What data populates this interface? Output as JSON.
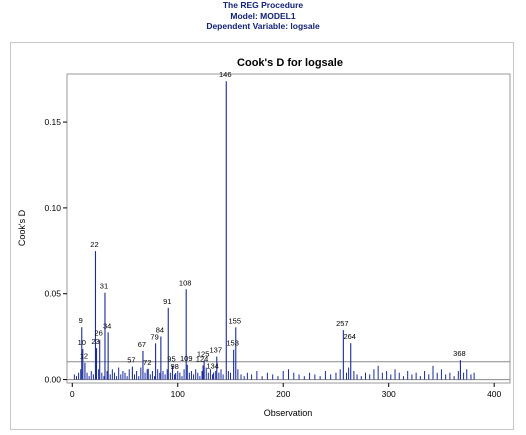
{
  "header": {
    "line1": "The REG Procedure",
    "line2": "Model: MODEL1",
    "line3": "Dependent Variable: logsale",
    "color": "#112277"
  },
  "chart_data": {
    "type": "bar",
    "title": "Cook's D for logsale",
    "xlabel": "Observation",
    "ylabel": "Cook's D",
    "xlim": [
      -5,
      415
    ],
    "ylim": [
      -0.002,
      0.178
    ],
    "xticks": [
      0,
      100,
      200,
      300,
      400
    ],
    "yticks": [
      0.0,
      0.05,
      0.1,
      0.15
    ],
    "ytick_labels": [
      "0.00",
      "0.05",
      "0.10",
      "0.15"
    ],
    "threshold": 0.0104,
    "bar_color": "#1a2a9a",
    "threshold_color": "#8a8a8a",
    "labeled_points": [
      {
        "obs": 9,
        "value": 0.0305
      },
      {
        "obs": 10,
        "value": 0.0178
      },
      {
        "obs": 12,
        "value": 0.0098
      },
      {
        "obs": 22,
        "value": 0.0748
      },
      {
        "obs": 23,
        "value": 0.0183
      },
      {
        "obs": 26,
        "value": 0.0232
      },
      {
        "obs": 31,
        "value": 0.0506
      },
      {
        "obs": 34,
        "value": 0.0275
      },
      {
        "obs": 57,
        "value": 0.0076
      },
      {
        "obs": 67,
        "value": 0.0167
      },
      {
        "obs": 72,
        "value": 0.0063
      },
      {
        "obs": 79,
        "value": 0.0211
      },
      {
        "obs": 84,
        "value": 0.0251
      },
      {
        "obs": 91,
        "value": 0.0418
      },
      {
        "obs": 95,
        "value": 0.0081
      },
      {
        "obs": 98,
        "value": 0.0038
      },
      {
        "obs": 108,
        "value": 0.0526
      },
      {
        "obs": 109,
        "value": 0.0086
      },
      {
        "obs": 124,
        "value": 0.0082
      },
      {
        "obs": 125,
        "value": 0.0111
      },
      {
        "obs": 134,
        "value": 0.0041
      },
      {
        "obs": 137,
        "value": 0.0134
      },
      {
        "obs": 146,
        "value": 0.1738
      },
      {
        "obs": 153,
        "value": 0.0174
      },
      {
        "obs": 155,
        "value": 0.0304
      },
      {
        "obs": 257,
        "value": 0.0288
      },
      {
        "obs": 264,
        "value": 0.0212
      },
      {
        "obs": 368,
        "value": 0.0113
      }
    ],
    "other_points": [
      {
        "obs": 2,
        "value": 0.003
      },
      {
        "obs": 4,
        "value": 0.002
      },
      {
        "obs": 6,
        "value": 0.004
      },
      {
        "obs": 8,
        "value": 0.006
      },
      {
        "obs": 14,
        "value": 0.004
      },
      {
        "obs": 16,
        "value": 0.002
      },
      {
        "obs": 18,
        "value": 0.005
      },
      {
        "obs": 20,
        "value": 0.003
      },
      {
        "obs": 25,
        "value": 0.006
      },
      {
        "obs": 28,
        "value": 0.004
      },
      {
        "obs": 30,
        "value": 0.002
      },
      {
        "obs": 33,
        "value": 0.005
      },
      {
        "obs": 36,
        "value": 0.003
      },
      {
        "obs": 38,
        "value": 0.006
      },
      {
        "obs": 40,
        "value": 0.004
      },
      {
        "obs": 42,
        "value": 0.002
      },
      {
        "obs": 44,
        "value": 0.007
      },
      {
        "obs": 46,
        "value": 0.003
      },
      {
        "obs": 48,
        "value": 0.005
      },
      {
        "obs": 50,
        "value": 0.004
      },
      {
        "obs": 52,
        "value": 0.002
      },
      {
        "obs": 54,
        "value": 0.006
      },
      {
        "obs": 59,
        "value": 0.003
      },
      {
        "obs": 61,
        "value": 0.005
      },
      {
        "obs": 63,
        "value": 0.002
      },
      {
        "obs": 65,
        "value": 0.007
      },
      {
        "obs": 69,
        "value": 0.004
      },
      {
        "obs": 71,
        "value": 0.006
      },
      {
        "obs": 74,
        "value": 0.003
      },
      {
        "obs": 76,
        "value": 0.005
      },
      {
        "obs": 78,
        "value": 0.002
      },
      {
        "obs": 81,
        "value": 0.006
      },
      {
        "obs": 83,
        "value": 0.004
      },
      {
        "obs": 86,
        "value": 0.005
      },
      {
        "obs": 88,
        "value": 0.003
      },
      {
        "obs": 90,
        "value": 0.006
      },
      {
        "obs": 93,
        "value": 0.004
      },
      {
        "obs": 97,
        "value": 0.003
      },
      {
        "obs": 100,
        "value": 0.005
      },
      {
        "obs": 102,
        "value": 0.004
      },
      {
        "obs": 104,
        "value": 0.002
      },
      {
        "obs": 106,
        "value": 0.006
      },
      {
        "obs": 111,
        "value": 0.004
      },
      {
        "obs": 113,
        "value": 0.005
      },
      {
        "obs": 115,
        "value": 0.003
      },
      {
        "obs": 117,
        "value": 0.006
      },
      {
        "obs": 119,
        "value": 0.004
      },
      {
        "obs": 121,
        "value": 0.002
      },
      {
        "obs": 123,
        "value": 0.005
      },
      {
        "obs": 127,
        "value": 0.007
      },
      {
        "obs": 129,
        "value": 0.004
      },
      {
        "obs": 131,
        "value": 0.006
      },
      {
        "obs": 133,
        "value": 0.003
      },
      {
        "obs": 136,
        "value": 0.005
      },
      {
        "obs": 139,
        "value": 0.004
      },
      {
        "obs": 141,
        "value": 0.006
      },
      {
        "obs": 143,
        "value": 0.003
      },
      {
        "obs": 148,
        "value": 0.005
      },
      {
        "obs": 150,
        "value": 0.004
      },
      {
        "obs": 157,
        "value": 0.006
      },
      {
        "obs": 160,
        "value": 0.003
      },
      {
        "obs": 163,
        "value": 0.002
      },
      {
        "obs": 166,
        "value": 0.004
      },
      {
        "obs": 170,
        "value": 0.003
      },
      {
        "obs": 175,
        "value": 0.005
      },
      {
        "obs": 180,
        "value": 0.002
      },
      {
        "obs": 185,
        "value": 0.004
      },
      {
        "obs": 190,
        "value": 0.003
      },
      {
        "obs": 195,
        "value": 0.002
      },
      {
        "obs": 200,
        "value": 0.005
      },
      {
        "obs": 205,
        "value": 0.006
      },
      {
        "obs": 210,
        "value": 0.004
      },
      {
        "obs": 215,
        "value": 0.003
      },
      {
        "obs": 220,
        "value": 0.002
      },
      {
        "obs": 225,
        "value": 0.004
      },
      {
        "obs": 230,
        "value": 0.003
      },
      {
        "obs": 235,
        "value": 0.002
      },
      {
        "obs": 240,
        "value": 0.005
      },
      {
        "obs": 245,
        "value": 0.003
      },
      {
        "obs": 250,
        "value": 0.004
      },
      {
        "obs": 254,
        "value": 0.006
      },
      {
        "obs": 260,
        "value": 0.004
      },
      {
        "obs": 262,
        "value": 0.007
      },
      {
        "obs": 267,
        "value": 0.005
      },
      {
        "obs": 270,
        "value": 0.003
      },
      {
        "obs": 274,
        "value": 0.002
      },
      {
        "obs": 278,
        "value": 0.004
      },
      {
        "obs": 282,
        "value": 0.003
      },
      {
        "obs": 286,
        "value": 0.006
      },
      {
        "obs": 290,
        "value": 0.008
      },
      {
        "obs": 294,
        "value": 0.004
      },
      {
        "obs": 298,
        "value": 0.005
      },
      {
        "obs": 302,
        "value": 0.003
      },
      {
        "obs": 306,
        "value": 0.006
      },
      {
        "obs": 310,
        "value": 0.004
      },
      {
        "obs": 314,
        "value": 0.002
      },
      {
        "obs": 318,
        "value": 0.005
      },
      {
        "obs": 322,
        "value": 0.003
      },
      {
        "obs": 326,
        "value": 0.004
      },
      {
        "obs": 330,
        "value": 0.002
      },
      {
        "obs": 334,
        "value": 0.005
      },
      {
        "obs": 338,
        "value": 0.003
      },
      {
        "obs": 342,
        "value": 0.008
      },
      {
        "obs": 346,
        "value": 0.004
      },
      {
        "obs": 350,
        "value": 0.006
      },
      {
        "obs": 354,
        "value": 0.003
      },
      {
        "obs": 358,
        "value": 0.004
      },
      {
        "obs": 362,
        "value": 0.002
      },
      {
        "obs": 366,
        "value": 0.005
      },
      {
        "obs": 371,
        "value": 0.004
      },
      {
        "obs": 374,
        "value": 0.006
      },
      {
        "obs": 378,
        "value": 0.003
      },
      {
        "obs": 381,
        "value": 0.004
      }
    ]
  }
}
